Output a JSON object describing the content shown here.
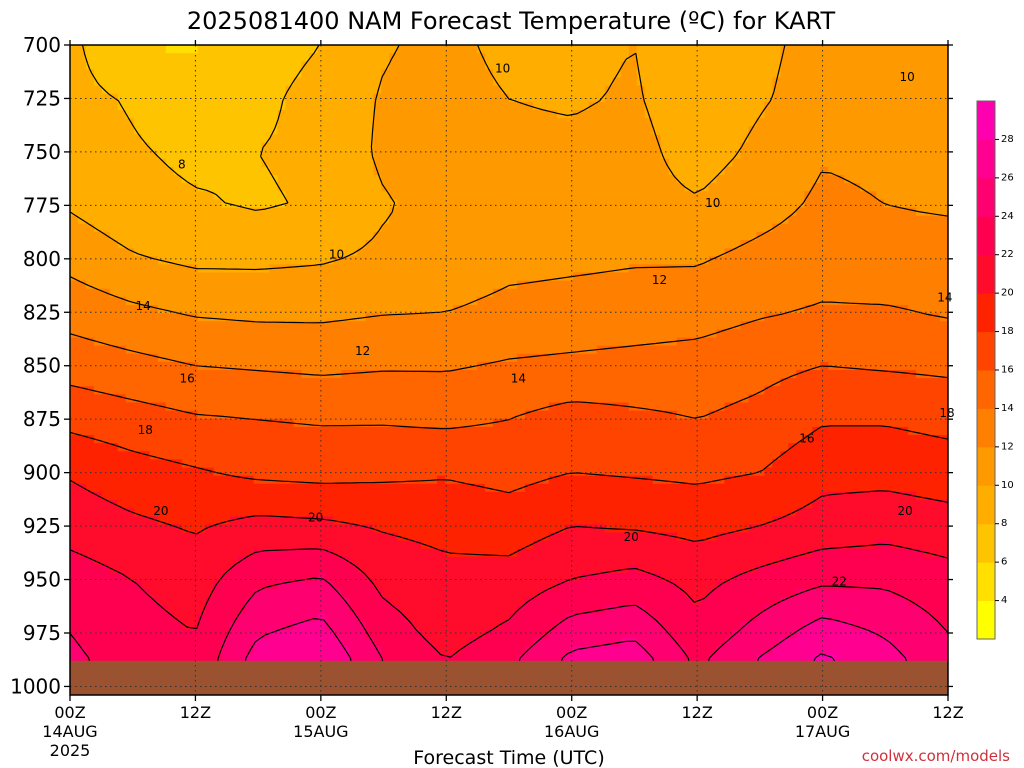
{
  "chart_data": {
    "type": "heatmap",
    "title": "2025081400 NAM Forecast Temperature (ºC) for KART",
    "xlabel": "Forecast Time (UTC)",
    "ylabel": "",
    "credit": "coolwx.com/models",
    "x_ticks": [
      {
        "hour": 0,
        "label": "00Z",
        "sub": "14AUG",
        "sub2": "2025"
      },
      {
        "hour": 12,
        "label": "12Z",
        "sub": "",
        "sub2": ""
      },
      {
        "hour": 24,
        "label": "00Z",
        "sub": "15AUG",
        "sub2": ""
      },
      {
        "hour": 36,
        "label": "12Z",
        "sub": "",
        "sub2": ""
      },
      {
        "hour": 48,
        "label": "00Z",
        "sub": "16AUG",
        "sub2": ""
      },
      {
        "hour": 60,
        "label": "12Z",
        "sub": "",
        "sub2": ""
      },
      {
        "hour": 72,
        "label": "00Z",
        "sub": "17AUG",
        "sub2": ""
      },
      {
        "hour": 84,
        "label": "12Z",
        "sub": "",
        "sub2": ""
      }
    ],
    "xlim": [
      0,
      84
    ],
    "y_ticks": [
      700,
      725,
      750,
      775,
      800,
      825,
      850,
      875,
      900,
      925,
      950,
      975,
      1000
    ],
    "ylim": [
      700,
      1004
    ],
    "grid": true,
    "colorbar": {
      "placement": "right",
      "levels": [
        2,
        4,
        6,
        8,
        10,
        12,
        14,
        16,
        18,
        20,
        22,
        24,
        26,
        28,
        30
      ],
      "tick_labels": [
        "4",
        "6",
        "8",
        "10",
        "12",
        "14",
        "16",
        "18",
        "20",
        "22",
        "24",
        "26",
        "28"
      ],
      "colors": [
        "#ffff00",
        "#ffe000",
        "#ffc400",
        "#ffae00",
        "#ff9900",
        "#ff8000",
        "#ff6600",
        "#ff4400",
        "#ff2200",
        "#ff0c2c",
        "#ff0050",
        "#ff0070",
        "#ff0090",
        "#ff00b0"
      ]
    },
    "ground_color": "#9b5230",
    "ground_top_hpa": 988,
    "times": [
      0,
      6,
      12,
      18,
      24,
      30,
      36,
      42,
      48,
      54,
      60,
      66,
      72,
      78,
      84
    ],
    "pressure_levels": [
      700,
      725,
      750,
      775,
      800,
      825,
      850,
      875,
      900,
      925,
      950,
      975,
      988
    ],
    "temperature": [
      [
        8.5,
        6.0,
        5.8,
        7.2,
        8.0,
        9.8,
        10.6,
        9.4,
        9.6,
        10.0,
        8.6,
        9.6,
        10.6,
        11.0,
        11.0
      ],
      [
        8.6,
        7.8,
        6.8,
        7.6,
        8.6,
        10.2,
        10.8,
        10.0,
        9.8,
        10.2,
        8.8,
        9.8,
        10.8,
        11.2,
        11.2
      ],
      [
        9.0,
        8.2,
        7.6,
        8.0,
        8.4,
        10.4,
        11.0,
        10.4,
        10.4,
        10.6,
        9.2,
        10.4,
        11.8,
        11.6,
        11.4
      ],
      [
        9.8,
        8.6,
        8.2,
        7.8,
        8.2,
        9.8,
        10.8,
        10.6,
        10.0,
        10.6,
        10.2,
        11.2,
        12.4,
        12.0,
        11.8
      ],
      [
        11.4,
        10.2,
        9.6,
        9.6,
        9.8,
        10.4,
        10.6,
        11.4,
        11.6,
        11.8,
        11.8,
        12.6,
        13.2,
        12.8,
        12.8
      ],
      [
        13.2,
        12.4,
        11.8,
        11.6,
        11.6,
        11.9,
        12.0,
        12.6,
        12.8,
        13.0,
        13.2,
        13.8,
        14.2,
        14.2,
        13.8
      ],
      [
        15.2,
        14.6,
        14.0,
        13.8,
        13.6,
        13.8,
        13.8,
        14.2,
        14.4,
        14.6,
        14.8,
        15.4,
        16.0,
        15.8,
        15.6
      ],
      [
        17.4,
        16.8,
        16.2,
        16.0,
        15.8,
        15.8,
        15.6,
        16.0,
        16.8,
        16.4,
        16.0,
        16.6,
        17.8,
        17.8,
        17.4
      ],
      [
        19.8,
        18.8,
        18.2,
        17.6,
        17.4,
        17.6,
        17.8,
        17.4,
        18.0,
        17.8,
        17.6,
        18.0,
        19.4,
        19.4,
        19.0
      ],
      [
        21.2,
        20.4,
        19.8,
        20.6,
        20.4,
        19.8,
        19.4,
        19.0,
        20.0,
        19.8,
        19.4,
        20.0,
        20.8,
        21.2,
        20.8
      ],
      [
        23.0,
        22.0,
        21.0,
        23.6,
        24.2,
        21.4,
        20.6,
        20.8,
        22.0,
        22.6,
        21.4,
        22.6,
        23.6,
        23.6,
        22.8
      ],
      [
        24.0,
        22.8,
        22.0,
        25.8,
        26.8,
        23.0,
        21.2,
        22.4,
        25.0,
        25.6,
        22.6,
        24.8,
        27.0,
        25.8,
        24.0
      ],
      [
        24.4,
        23.2,
        22.4,
        27.0,
        28.0,
        24.0,
        22.0,
        23.6,
        26.6,
        27.2,
        23.6,
        26.2,
        28.4,
        26.8,
        24.6
      ]
    ],
    "contour_labels": [
      {
        "text": "8",
        "hour": 10.7,
        "hpa": 756
      },
      {
        "text": "10",
        "hour": 41.4,
        "hpa": 711
      },
      {
        "text": "10",
        "hour": 80.1,
        "hpa": 715
      },
      {
        "text": "10",
        "hour": 61.5,
        "hpa": 774
      },
      {
        "text": "10",
        "hour": 25.5,
        "hpa": 798
      },
      {
        "text": "14",
        "hour": 7.0,
        "hpa": 822
      },
      {
        "text": "12",
        "hour": 56.4,
        "hpa": 810
      },
      {
        "text": "14",
        "hour": 83.7,
        "hpa": 818
      },
      {
        "text": "12",
        "hour": 28.0,
        "hpa": 843
      },
      {
        "text": "16",
        "hour": 11.2,
        "hpa": 856
      },
      {
        "text": "14",
        "hour": 42.9,
        "hpa": 856
      },
      {
        "text": "18",
        "hour": 7.2,
        "hpa": 880
      },
      {
        "text": "18",
        "hour": 83.9,
        "hpa": 872
      },
      {
        "text": "16",
        "hour": 70.5,
        "hpa": 884
      },
      {
        "text": "20",
        "hour": 8.7,
        "hpa": 918
      },
      {
        "text": "20",
        "hour": 23.5,
        "hpa": 921
      },
      {
        "text": "20",
        "hour": 79.9,
        "hpa": 918
      },
      {
        "text": "20",
        "hour": 53.7,
        "hpa": 930
      },
      {
        "text": "22",
        "hour": 73.6,
        "hpa": 951
      }
    ]
  }
}
